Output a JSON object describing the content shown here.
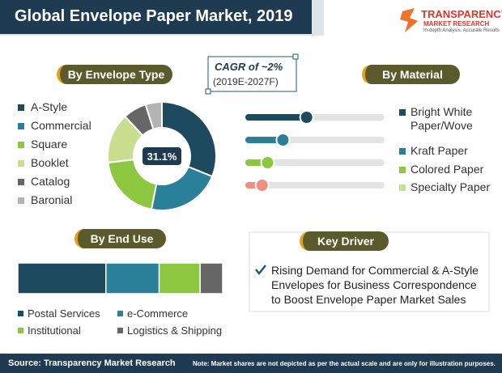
{
  "header": {
    "title": "Global Envelope Paper Market, 2019",
    "logo": {
      "name": "TRANSPARENCY",
      "subname": "MARKET RESEARCH",
      "tagline": "In-depth Analysis. Accurate Results"
    }
  },
  "cagr": {
    "label": "CAGR of ~2%",
    "period": "(2019E-2027F)"
  },
  "chart_data": [
    {
      "type": "pie",
      "title": "By Envelope Type",
      "donut": true,
      "categories": [
        "A-Style",
        "Commercial",
        "Square",
        "Booklet",
        "Catalog",
        "Baronial"
      ],
      "values": [
        31.1,
        22,
        20,
        15,
        7,
        4.9
      ],
      "value_labels": [
        "31.1%",
        null,
        null,
        null,
        null,
        null
      ],
      "colors": [
        "#1d4a5f",
        "#2a7f99",
        "#8dc63f",
        "#c7df8e",
        "#666666",
        "#b4b4b4"
      ]
    },
    {
      "type": "slider",
      "title": "By Material",
      "categories": [
        "Bright White Paper/Wove",
        "Kraft Paper",
        "Colored Paper",
        "Specialty Paper"
      ],
      "values": [
        44,
        27,
        16,
        12
      ],
      "xlim": [
        0,
        100
      ],
      "colors": [
        "#1d4a5f",
        "#2a7f99",
        "#8dc63f",
        "#f08f80"
      ],
      "legend_colors": [
        "#1d4a5f",
        "#2a7f99",
        "#8dc63f",
        "#c7df8e"
      ]
    },
    {
      "type": "stacked_bar",
      "title": "By End Use",
      "xlim": [
        0,
        100
      ],
      "series": [
        {
          "name": "Postal Services",
          "color": "#1d4a5f",
          "values": [
            43
          ]
        },
        {
          "name": "e-Commerce",
          "color": "#2a7f99",
          "values": [
            26
          ]
        },
        {
          "name": "Institutional",
          "color": "#8dc63f",
          "values": [
            20
          ]
        },
        {
          "name": "Logistics & Shipping",
          "color": "#666666",
          "values": [
            11
          ]
        }
      ]
    }
  ],
  "key_driver": {
    "title": "Key Driver",
    "lines": [
      "Rising Demand for Commercial & A-Style",
      "Envelopes for Business Correspondence",
      "to Boost Envelope Paper Market Sales"
    ]
  },
  "footer": {
    "source": "Source: Transparency Market Research",
    "note": "Note: Market shares are not depicted as per the actual scale and are only for illustration purposes."
  }
}
